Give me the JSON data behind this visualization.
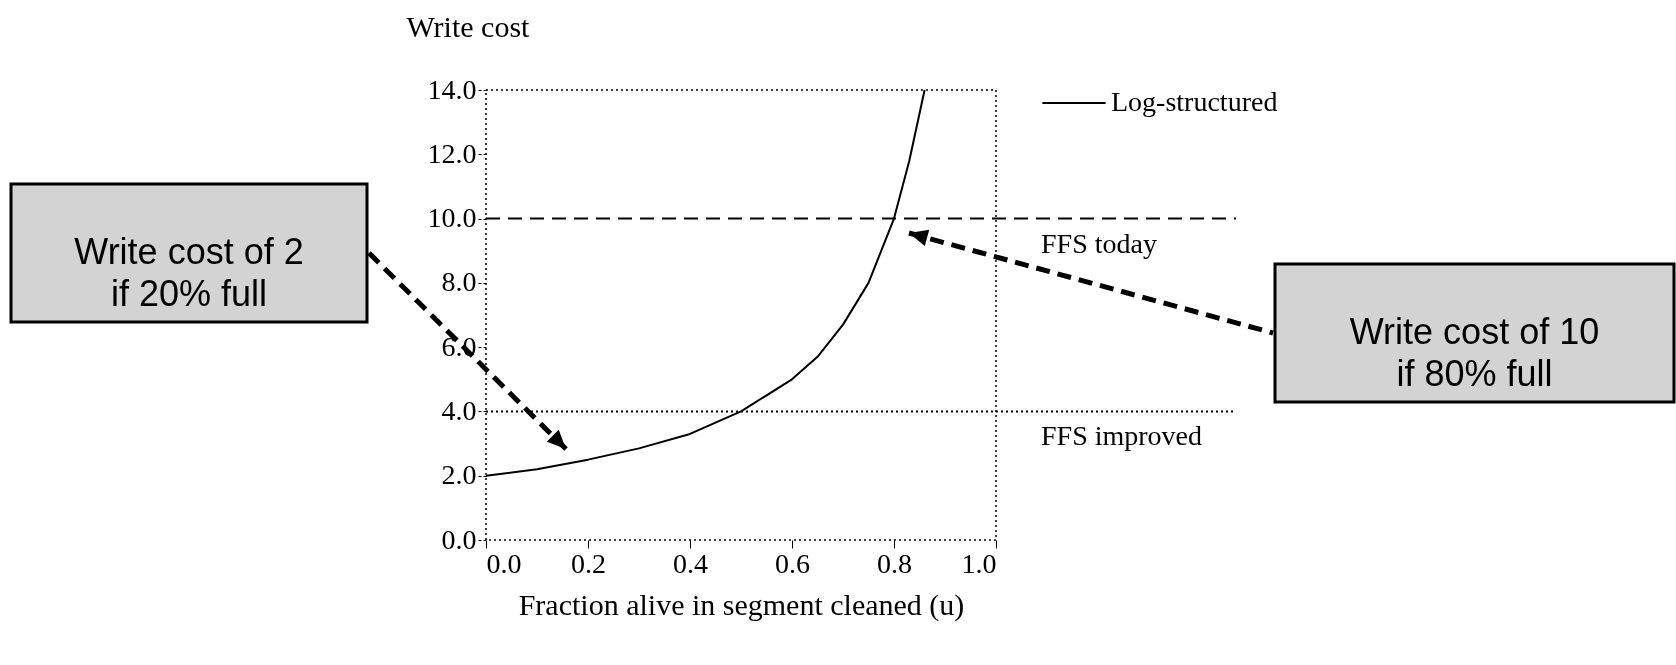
{
  "chart_data": {
    "type": "line",
    "xlabel": "Fraction alive in segment cleaned (u)",
    "ylabel": "Write cost",
    "xlim": [
      0,
      1
    ],
    "ylim": [
      0,
      14
    ],
    "xticks": [
      {
        "value": 0,
        "label": "0.0"
      },
      {
        "value": 0.2,
        "label": "0.2"
      },
      {
        "value": 0.4,
        "label": "0.4"
      },
      {
        "value": 0.6,
        "label": "0.6"
      },
      {
        "value": 0.8,
        "label": "0.8"
      },
      {
        "value": 1,
        "label": "1.0"
      }
    ],
    "yticks": [
      {
        "value": 0,
        "label": "0.0"
      },
      {
        "value": 2,
        "label": "2.0"
      },
      {
        "value": 4,
        "label": "4.0"
      },
      {
        "value": 6,
        "label": "6.0"
      },
      {
        "value": 8,
        "label": "8.0"
      },
      {
        "value": 10,
        "label": "10.0"
      },
      {
        "value": 12,
        "label": "12.0"
      },
      {
        "value": 14,
        "label": "14.0"
      }
    ],
    "series": [
      {
        "name": "Log-structured",
        "color": "#000000",
        "x": [
          0,
          0.1,
          0.2,
          0.3,
          0.4,
          0.5,
          0.6,
          0.65,
          0.7,
          0.75,
          0.8,
          0.83,
          0.86
        ],
        "values": [
          2.0,
          2.2,
          2.5,
          2.85,
          3.3,
          4.0,
          5.0,
          5.7,
          6.7,
          8.0,
          10.0,
          11.8,
          14.0
        ]
      }
    ],
    "ref_lines": [
      {
        "axis": "y",
        "value": 10,
        "label": "FFS today",
        "line_style": "dashed"
      },
      {
        "axis": "y",
        "value": 4,
        "label": "FFS improved",
        "line_style": "dotted"
      }
    ],
    "annotations": [
      "Write cost of 2\nif 20% full",
      "Write cost of 10\nif 80% full"
    ],
    "legend": "right",
    "grid": false,
    "line_style": "solid",
    "marker": "none"
  }
}
